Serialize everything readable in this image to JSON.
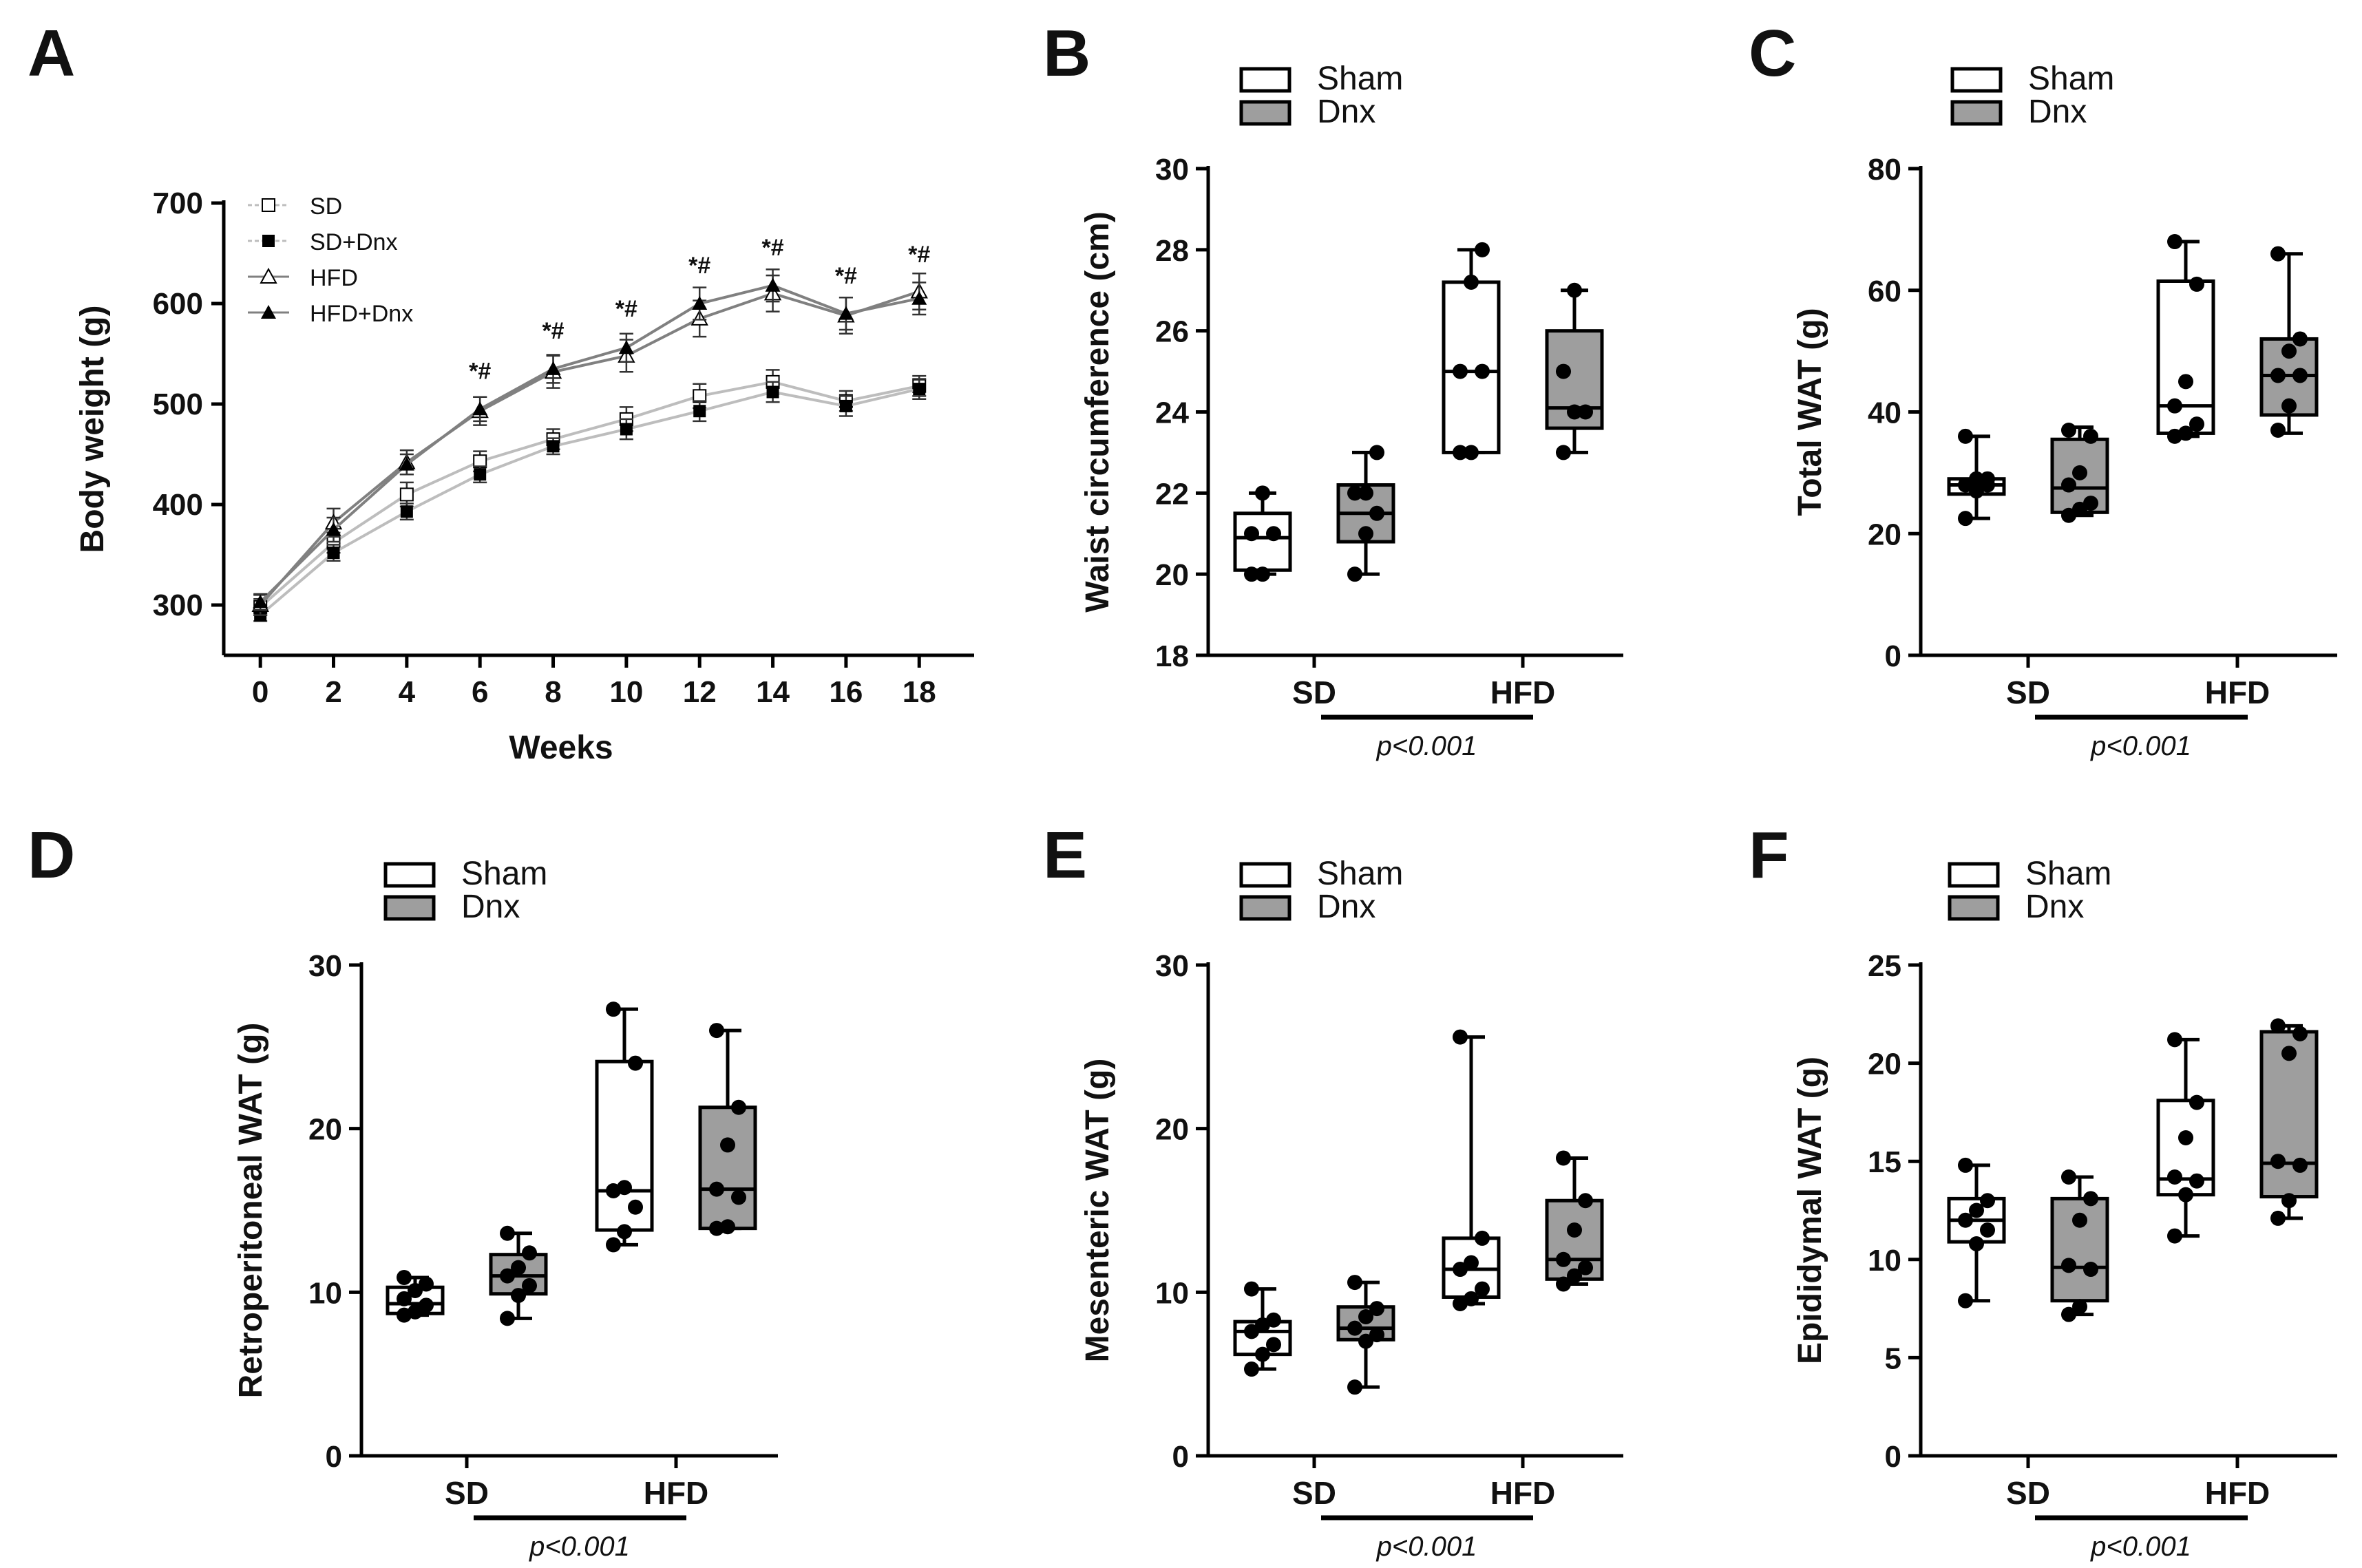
{
  "chart_data": [
    {
      "panel": "A",
      "type": "line",
      "xlabel": "Weeks",
      "ylabel": "Body weight (g)",
      "x": [
        0,
        2,
        4,
        6,
        8,
        10,
        12,
        14,
        16,
        18
      ],
      "xlim": [
        -1,
        19.5
      ],
      "ylim": [
        250,
        700
      ],
      "yticks": [
        300,
        400,
        500,
        600,
        700
      ],
      "xticks": [
        0,
        2,
        4,
        6,
        8,
        10,
        12,
        14,
        16,
        18
      ],
      "series": [
        {
          "name": "SD",
          "marker": "square-open",
          "values": [
            298,
            362,
            410,
            443,
            465,
            485,
            508,
            522,
            503,
            518
          ],
          "err": [
            8,
            10,
            12,
            10,
            10,
            12,
            12,
            12,
            10,
            10
          ]
        },
        {
          "name": "SD+Dnx",
          "marker": "square-filled",
          "values": [
            290,
            352,
            393,
            430,
            458,
            475,
            493,
            512,
            498,
            515
          ],
          "err": [
            6,
            8,
            8,
            8,
            8,
            10,
            10,
            10,
            10,
            10
          ]
        },
        {
          "name": "HFD",
          "marker": "triangle-open",
          "values": [
            300,
            382,
            442,
            493,
            532,
            548,
            585,
            610,
            588,
            612
          ],
          "err": [
            10,
            14,
            12,
            14,
            16,
            16,
            18,
            18,
            18,
            18
          ]
        },
        {
          "name": "HFD+Dnx",
          "marker": "triangle-filled",
          "values": [
            303,
            375,
            440,
            495,
            535,
            556,
            600,
            618,
            590,
            605
          ],
          "err": [
            8,
            12,
            10,
            12,
            14,
            14,
            16,
            16,
            16,
            16
          ]
        }
      ],
      "annotations": [
        {
          "x": 6,
          "text": "*#",
          "y": 525
        },
        {
          "x": 8,
          "text": "*#",
          "y": 565
        },
        {
          "x": 10,
          "text": "*#",
          "y": 587
        },
        {
          "x": 12,
          "text": "*#",
          "y": 630
        },
        {
          "x": 14,
          "text": "*#",
          "y": 648
        },
        {
          "x": 16,
          "text": "*#",
          "y": 620
        },
        {
          "x": 18,
          "text": "*#",
          "y": 641
        }
      ]
    },
    {
      "panel": "B",
      "type": "box",
      "ylabel": "Waist circumference (cm)",
      "ylim": [
        18,
        30
      ],
      "yticks": [
        18,
        20,
        22,
        24,
        26,
        28,
        30
      ],
      "categories": [
        "SD",
        "HFD"
      ],
      "legend": [
        "Sham",
        "Dnx"
      ],
      "pvalue": "p<0.001",
      "groups": [
        {
          "category": "SD",
          "series": "Sham",
          "min": 20,
          "q1": 20.1,
          "median": 20.9,
          "q3": 21.5,
          "max": 22,
          "points": [
            20,
            20,
            21,
            21,
            22
          ]
        },
        {
          "category": "SD",
          "series": "Dnx",
          "min": 20,
          "q1": 20.8,
          "median": 21.5,
          "q3": 22.2,
          "max": 23,
          "points": [
            20,
            21,
            21.5,
            22,
            22,
            23
          ]
        },
        {
          "category": "HFD",
          "series": "Sham",
          "min": 23,
          "q1": 23,
          "median": 25,
          "q3": 27.2,
          "max": 28,
          "points": [
            23,
            23,
            25,
            25,
            27.2,
            28
          ]
        },
        {
          "category": "HFD",
          "series": "Dnx",
          "min": 23,
          "q1": 23.6,
          "median": 24.1,
          "q3": 26,
          "max": 27,
          "points": [
            23,
            24,
            24,
            25,
            27
          ]
        }
      ]
    },
    {
      "panel": "C",
      "type": "box",
      "ylabel": "Total WAT (g)",
      "ylim": [
        0,
        80
      ],
      "yticks": [
        0,
        20,
        40,
        60,
        80
      ],
      "categories": [
        "SD",
        "HFD"
      ],
      "legend": [
        "Sham",
        "Dnx"
      ],
      "pvalue": "p<0.001",
      "groups": [
        {
          "category": "SD",
          "series": "Sham",
          "min": 22.5,
          "q1": 26.5,
          "median": 28,
          "q3": 29,
          "max": 36,
          "points": [
            22.5,
            27,
            28,
            28,
            29,
            29,
            36
          ]
        },
        {
          "category": "SD",
          "series": "Dnx",
          "min": 23,
          "q1": 23.5,
          "median": 27.5,
          "q3": 35.5,
          "max": 37.5,
          "points": [
            23,
            24,
            25,
            28,
            30,
            36,
            37
          ]
        },
        {
          "category": "HFD",
          "series": "Sham",
          "min": 36,
          "q1": 36.5,
          "median": 41,
          "q3": 61.5,
          "max": 68,
          "points": [
            36,
            36.5,
            38,
            41,
            45,
            61,
            68
          ]
        },
        {
          "category": "HFD",
          "series": "Dnx",
          "min": 36.5,
          "q1": 39.5,
          "median": 46,
          "q3": 52,
          "max": 66,
          "points": [
            37,
            41,
            46,
            46,
            50,
            52,
            66
          ]
        }
      ]
    },
    {
      "panel": "D",
      "type": "box",
      "ylabel": "Retroperitoneal WAT (g)",
      "ylim": [
        0,
        30
      ],
      "yticks": [
        0,
        10,
        20,
        30
      ],
      "categories": [
        "SD",
        "HFD"
      ],
      "legend": [
        "Sham",
        "Dnx"
      ],
      "pvalue": "p<0.001",
      "groups": [
        {
          "category": "SD",
          "series": "Sham",
          "min": 8.6,
          "q1": 8.7,
          "median": 9.3,
          "q3": 10.3,
          "max": 10.9,
          "points": [
            8.6,
            8.8,
            9.2,
            9.6,
            10.1,
            10.5,
            10.9
          ]
        },
        {
          "category": "SD",
          "series": "Dnx",
          "min": 8.4,
          "q1": 9.9,
          "median": 11,
          "q3": 12.3,
          "max": 13.6,
          "points": [
            8.4,
            9.8,
            10.4,
            11,
            11.5,
            12.4,
            13.6
          ]
        },
        {
          "category": "HFD",
          "series": "Sham",
          "min": 12.9,
          "q1": 13.8,
          "median": 16.2,
          "q3": 24.1,
          "max": 27.3,
          "points": [
            12.9,
            13.7,
            15.2,
            16.2,
            16.4,
            24,
            27.3
          ]
        },
        {
          "category": "HFD",
          "series": "Dnx",
          "min": 13.9,
          "q1": 13.9,
          "median": 16.3,
          "q3": 21.3,
          "max": 26,
          "points": [
            13.9,
            14,
            15.8,
            16.3,
            19,
            21.3,
            26
          ]
        }
      ]
    },
    {
      "panel": "E",
      "type": "box",
      "ylabel": "Mesenteric WAT (g)",
      "ylim": [
        0,
        30
      ],
      "yticks": [
        0,
        10,
        20,
        30
      ],
      "categories": [
        "SD",
        "HFD"
      ],
      "legend": [
        "Sham",
        "Dnx"
      ],
      "pvalue": "p<0.001",
      "groups": [
        {
          "category": "SD",
          "series": "Sham",
          "min": 5.3,
          "q1": 6.2,
          "median": 7.6,
          "q3": 8.2,
          "max": 10.2,
          "points": [
            5.3,
            6.2,
            6.8,
            7.6,
            8,
            8.3,
            10.2
          ]
        },
        {
          "category": "SD",
          "series": "Dnx",
          "min": 4.2,
          "q1": 7.1,
          "median": 7.8,
          "q3": 9.1,
          "max": 10.6,
          "points": [
            4.2,
            7,
            7.4,
            7.8,
            8.5,
            9,
            10.6
          ]
        },
        {
          "category": "HFD",
          "series": "Sham",
          "min": 9.3,
          "q1": 9.7,
          "median": 11.4,
          "q3": 13.3,
          "max": 25.6,
          "points": [
            9.3,
            9.6,
            10.2,
            11.4,
            11.8,
            13.3,
            25.6
          ]
        },
        {
          "category": "HFD",
          "series": "Dnx",
          "min": 10.5,
          "q1": 10.8,
          "median": 12,
          "q3": 15.6,
          "max": 18.2,
          "points": [
            10.5,
            11,
            11.5,
            12,
            13.8,
            15.6,
            18.2
          ]
        }
      ]
    },
    {
      "panel": "F",
      "type": "box",
      "ylabel": "Epididymal WAT (g)",
      "ylim": [
        0,
        25
      ],
      "yticks": [
        0,
        5,
        10,
        15,
        20,
        25
      ],
      "categories": [
        "SD",
        "HFD"
      ],
      "legend": [
        "Sham",
        "Dnx"
      ],
      "pvalue": "p<0.001",
      "groups": [
        {
          "category": "SD",
          "series": "Sham",
          "min": 7.9,
          "q1": 10.9,
          "median": 12,
          "q3": 13.1,
          "max": 14.8,
          "points": [
            7.9,
            10.8,
            11.5,
            12,
            12.5,
            13,
            14.8
          ]
        },
        {
          "category": "SD",
          "series": "Dnx",
          "min": 7.2,
          "q1": 7.9,
          "median": 9.6,
          "q3": 13.1,
          "max": 14.2,
          "points": [
            7.2,
            7.6,
            9.5,
            9.7,
            12,
            13.1,
            14.2
          ]
        },
        {
          "category": "HFD",
          "series": "Sham",
          "min": 11.2,
          "q1": 13.3,
          "median": 14.1,
          "q3": 18.1,
          "max": 21.2,
          "points": [
            11.2,
            13.3,
            14,
            14.2,
            16.2,
            18,
            21.2
          ]
        },
        {
          "category": "HFD",
          "series": "Dnx",
          "min": 12.1,
          "q1": 13.2,
          "median": 14.9,
          "q3": 21.6,
          "max": 21.9,
          "points": [
            12.1,
            13,
            14.8,
            15,
            20.5,
            21.5,
            21.9
          ]
        }
      ]
    }
  ],
  "colors": {
    "sham_fill": "#ffffff",
    "dnx_fill": "#9e9e9e",
    "axis": "#000000",
    "line_light": "#bdbdbd",
    "line_dark": "#808080"
  }
}
